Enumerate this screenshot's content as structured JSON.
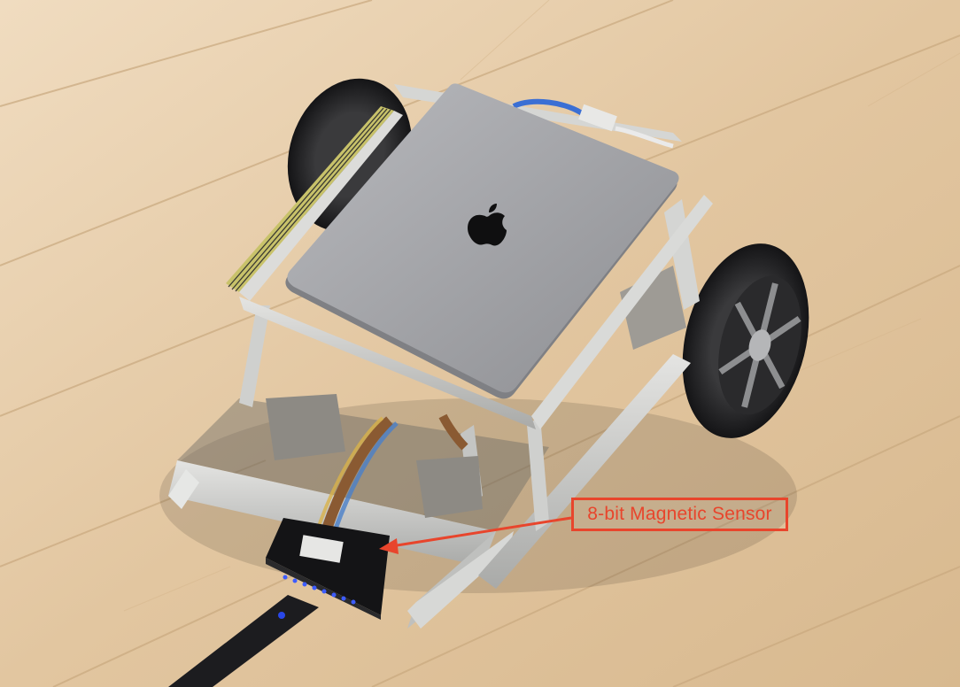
{
  "annotation": {
    "label": "8-bit Magnetic Sensor",
    "color": "#e8452c"
  },
  "subject": {
    "logo_icon": "apple-logo-icon"
  }
}
